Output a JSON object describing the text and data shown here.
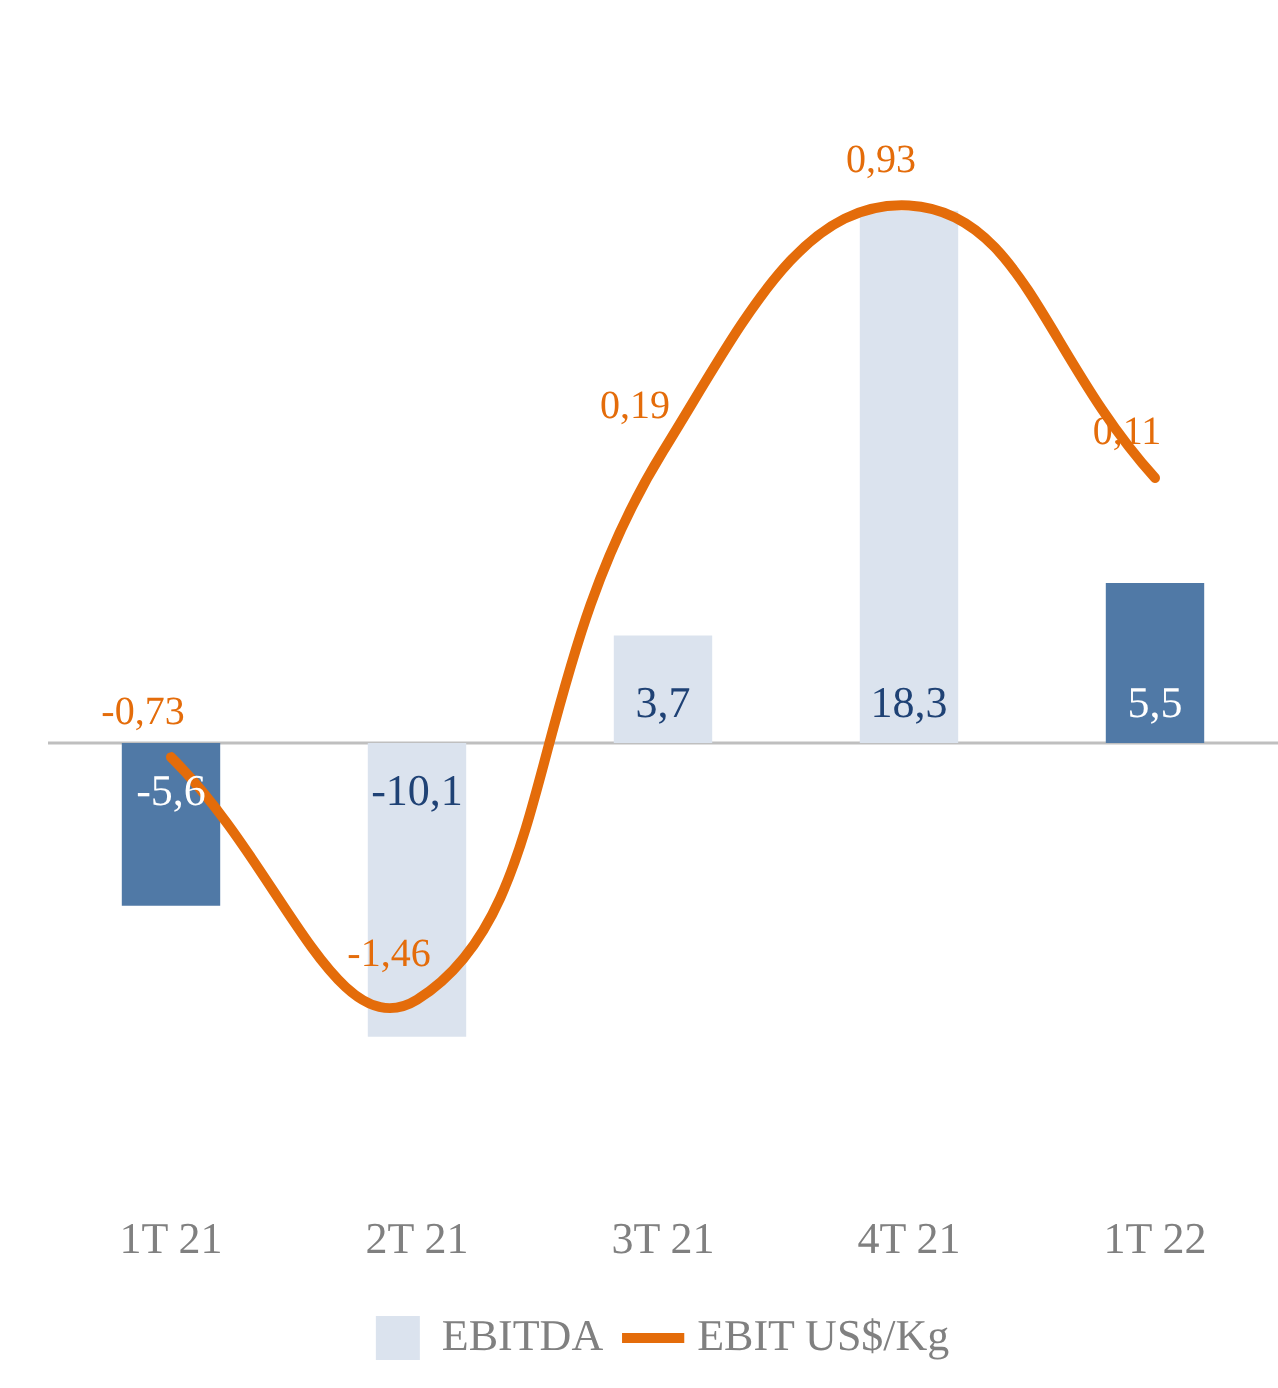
{
  "chart_data": {
    "type": "bar",
    "categories": [
      "1T 21",
      "2T 21",
      "3T 21",
      "4T 21",
      "1T 22"
    ],
    "series": [
      {
        "name": "EBITDA",
        "color": "#dbe3ee",
        "colors": [
          "#5079a6",
          "#dbe3ee",
          "#dbe3ee",
          "#dbe3ee",
          "#5079a6"
        ],
        "values": [
          -5.6,
          -10.1,
          3.7,
          18.3,
          5.5
        ],
        "value_labels": [
          "-5,6",
          "-10,1",
          "3,7",
          "18,3",
          "5,5"
        ]
      },
      {
        "name": "EBIT US$/Kg",
        "type": "line",
        "axis": "y2",
        "color": "#e46c0a",
        "values": [
          -0.73,
          -1.46,
          0.19,
          0.93,
          0.11
        ],
        "value_labels": [
          "-0,73",
          "-1,46",
          "0,19",
          "0,93",
          "0,11"
        ]
      }
    ],
    "tick_labels": "x",
    "legend": "bottom",
    "marker": "none",
    "ref_lines": [
      {
        "axis": "y",
        "value": 0,
        "color": "#bfbfbf"
      }
    ]
  }
}
